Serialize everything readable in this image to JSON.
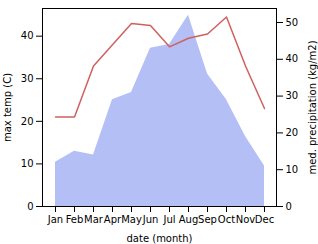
{
  "chart_data": {
    "type": "line",
    "x_label": "date (month)",
    "y_label": "max temp (C)",
    "y2_label": "med. precipitation (kg/m2)",
    "categories": [
      "Jan",
      "Feb",
      "Mar",
      "Apr",
      "May",
      "Jun",
      "Jul",
      "Aug",
      "Sep",
      "Oct",
      "Nov",
      "Dec"
    ],
    "series": [
      {
        "name": "med. precipitation",
        "type": "area",
        "axis": "y2",
        "color": "#b3bff5",
        "values": [
          12,
          15,
          14,
          29,
          31,
          43,
          44,
          52,
          36,
          29,
          19,
          11
        ]
      },
      {
        "name": "max temp",
        "type": "line",
        "axis": "y",
        "color": "#d0605e",
        "values": [
          21,
          21,
          33,
          38,
          43,
          42.5,
          37.5,
          39.5,
          40.5,
          44.5,
          33,
          23
        ]
      }
    ],
    "ylim": [
      0,
      46.5
    ],
    "yticks": [
      0,
      10,
      20,
      30,
      40
    ],
    "y2lim": [
      0,
      53.8
    ],
    "y2ticks": [
      0,
      10,
      20,
      30,
      40,
      50
    ],
    "grid": false
  }
}
